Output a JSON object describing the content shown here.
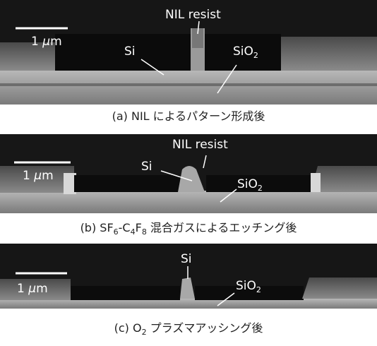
{
  "panels": [
    {
      "labels": {
        "resist": "NIL resist",
        "si": "Si",
        "sio2": [
          "SiO",
          "2"
        ]
      },
      "scale": [
        "1 ",
        "μ",
        "m"
      ],
      "caption": [
        "(a) NIL によるパターン形成後"
      ]
    },
    {
      "labels": {
        "resist": "NIL resist",
        "si": "Si",
        "sio2": [
          "SiO",
          "2"
        ]
      },
      "scale": [
        "1 ",
        "μ",
        "m"
      ],
      "caption": [
        "(b) SF",
        "6",
        "-C",
        "4",
        "F",
        "8",
        " 混合ガスによるエッチング後"
      ]
    },
    {
      "labels": {
        "si": "Si",
        "sio2": [
          "SiO",
          "2"
        ]
      },
      "scale": [
        "1 ",
        "μ",
        "m"
      ],
      "caption": [
        "(c) O",
        "2",
        " プラズマアッシング後"
      ]
    }
  ]
}
